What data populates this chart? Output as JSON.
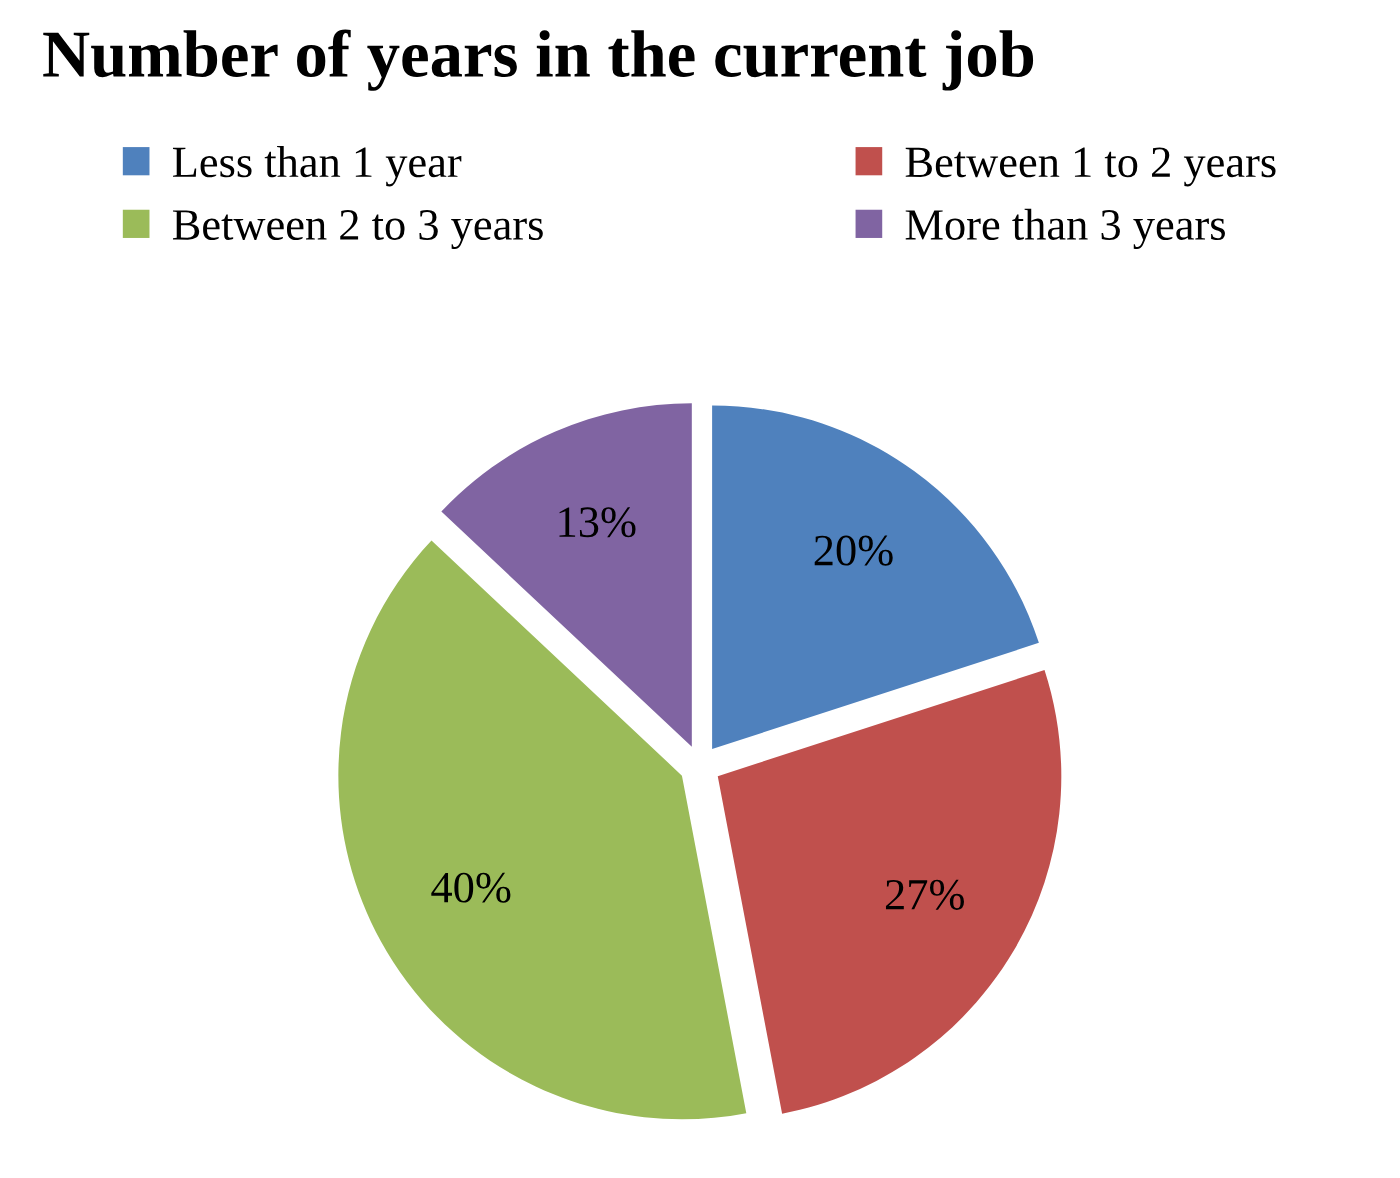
{
  "chart_data": {
    "type": "pie",
    "title": "Number of years in the current job",
    "categories": [
      "Less than 1 year",
      "Between 1 to 2 years",
      "Between 2 to 3 years",
      "More than 3 years"
    ],
    "values": [
      20,
      27,
      40,
      13
    ],
    "colors": [
      "#4f81bd",
      "#c0504d",
      "#9bbb59",
      "#8064a2"
    ],
    "value_labels": [
      "20%",
      "27%",
      "40%",
      "13%"
    ],
    "legend": "top"
  }
}
